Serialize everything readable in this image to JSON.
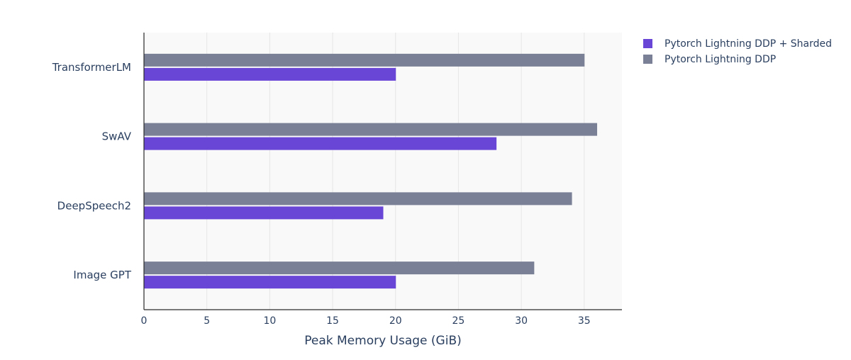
{
  "chart_data": {
    "type": "bar",
    "orientation": "horizontal",
    "categories": [
      "Image GPT",
      "DeepSpeech2",
      "SwAV",
      "TransformerLM"
    ],
    "series": [
      {
        "name": "Pytorch Lightning DDP + Sharded",
        "color": "#6a46d6",
        "values": [
          20,
          19,
          28,
          20
        ]
      },
      {
        "name": "Pytorch Lightning DDP",
        "color": "#7a8096",
        "values": [
          31,
          34,
          36,
          35
        ]
      }
    ],
    "xlabel": "Peak Memory Usage (GiB)",
    "ylabel": "",
    "xlim": [
      0,
      38
    ],
    "xticks": [
      0,
      5,
      10,
      15,
      20,
      25,
      30,
      35
    ],
    "grid": true,
    "legend_position": "top-right",
    "plot_background": "#f9f9f9"
  }
}
